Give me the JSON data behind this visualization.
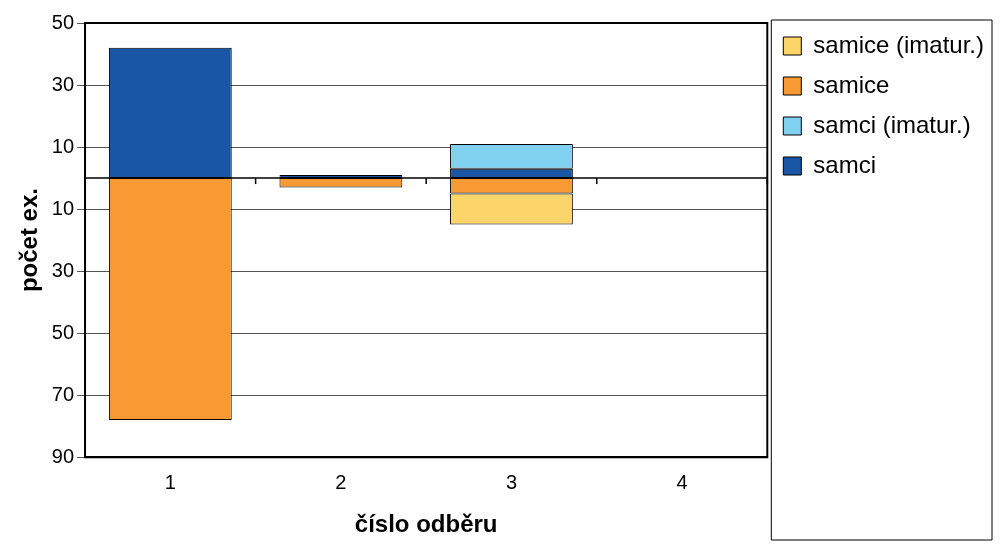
{
  "chart_data": {
    "type": "bar",
    "stacked": true,
    "xlabel": "číslo odběru",
    "ylabel": "počet ex.",
    "categories": [
      "1",
      "2",
      "3",
      "4"
    ],
    "series": [
      {
        "name": "samci",
        "color": "#1a56a6",
        "values": [
          42,
          1,
          3,
          null
        ]
      },
      {
        "name": "samci (imatur.)",
        "color": "#80d0f0",
        "values": [
          null,
          null,
          8,
          null
        ]
      },
      {
        "name": "samice",
        "color": "#f79a34",
        "values": [
          -78,
          -3,
          -5,
          null
        ]
      },
      {
        "name": "samice (imatur.)",
        "color": "#fbd56a",
        "values": [
          null,
          null,
          -10,
          null
        ]
      }
    ],
    "ylim": [
      -90,
      50
    ],
    "yticks": [
      50,
      30,
      10,
      {
        "value": -10,
        "label": "10"
      },
      {
        "value": -30,
        "label": "30"
      },
      {
        "value": -50,
        "label": "50"
      },
      {
        "value": -70,
        "label": "70"
      },
      {
        "value": -90,
        "label": "90"
      }
    ],
    "ref_lines": [
      {
        "axis": "y",
        "value": 0,
        "color": "#000000"
      }
    ],
    "grid": "y",
    "legend": "right"
  }
}
